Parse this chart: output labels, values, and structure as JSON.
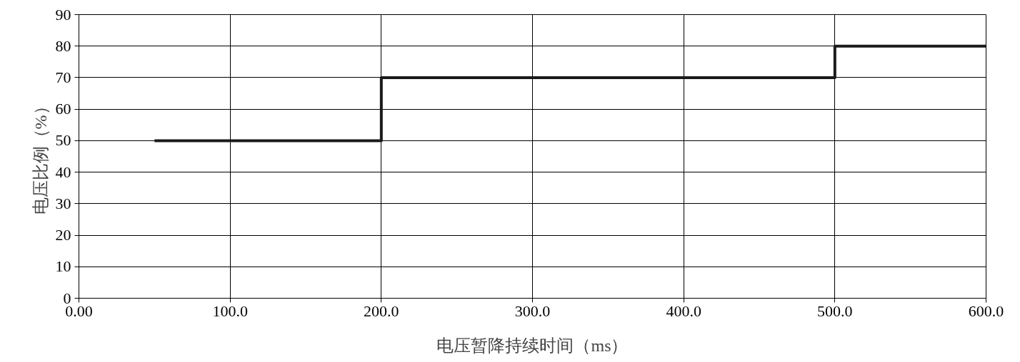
{
  "chart_data": {
    "type": "step",
    "xlabel": "电压暂降持续时间（ms）",
    "ylabel": "电压比例（%）",
    "x": [
      50,
      200,
      500,
      600
    ],
    "series": [
      {
        "color": "#1a1a1a",
        "values": [
          50,
          70,
          80,
          80
        ]
      }
    ],
    "xlim": [
      0,
      600
    ],
    "ylim": [
      0,
      90
    ],
    "xticks": [
      {
        "value": 0,
        "label": "0.00"
      },
      {
        "value": 100,
        "label": "100.0"
      },
      {
        "value": 200,
        "label": "200.0"
      },
      {
        "value": 300,
        "label": "300.0"
      },
      {
        "value": 400,
        "label": "400.0"
      },
      {
        "value": 500,
        "label": "500.0"
      },
      {
        "value": 600,
        "label": "600.0"
      }
    ],
    "yticks": [
      0,
      10,
      20,
      30,
      40,
      50,
      60,
      70,
      80,
      90
    ],
    "grid": true,
    "marker": "none",
    "line_style": "solid"
  }
}
